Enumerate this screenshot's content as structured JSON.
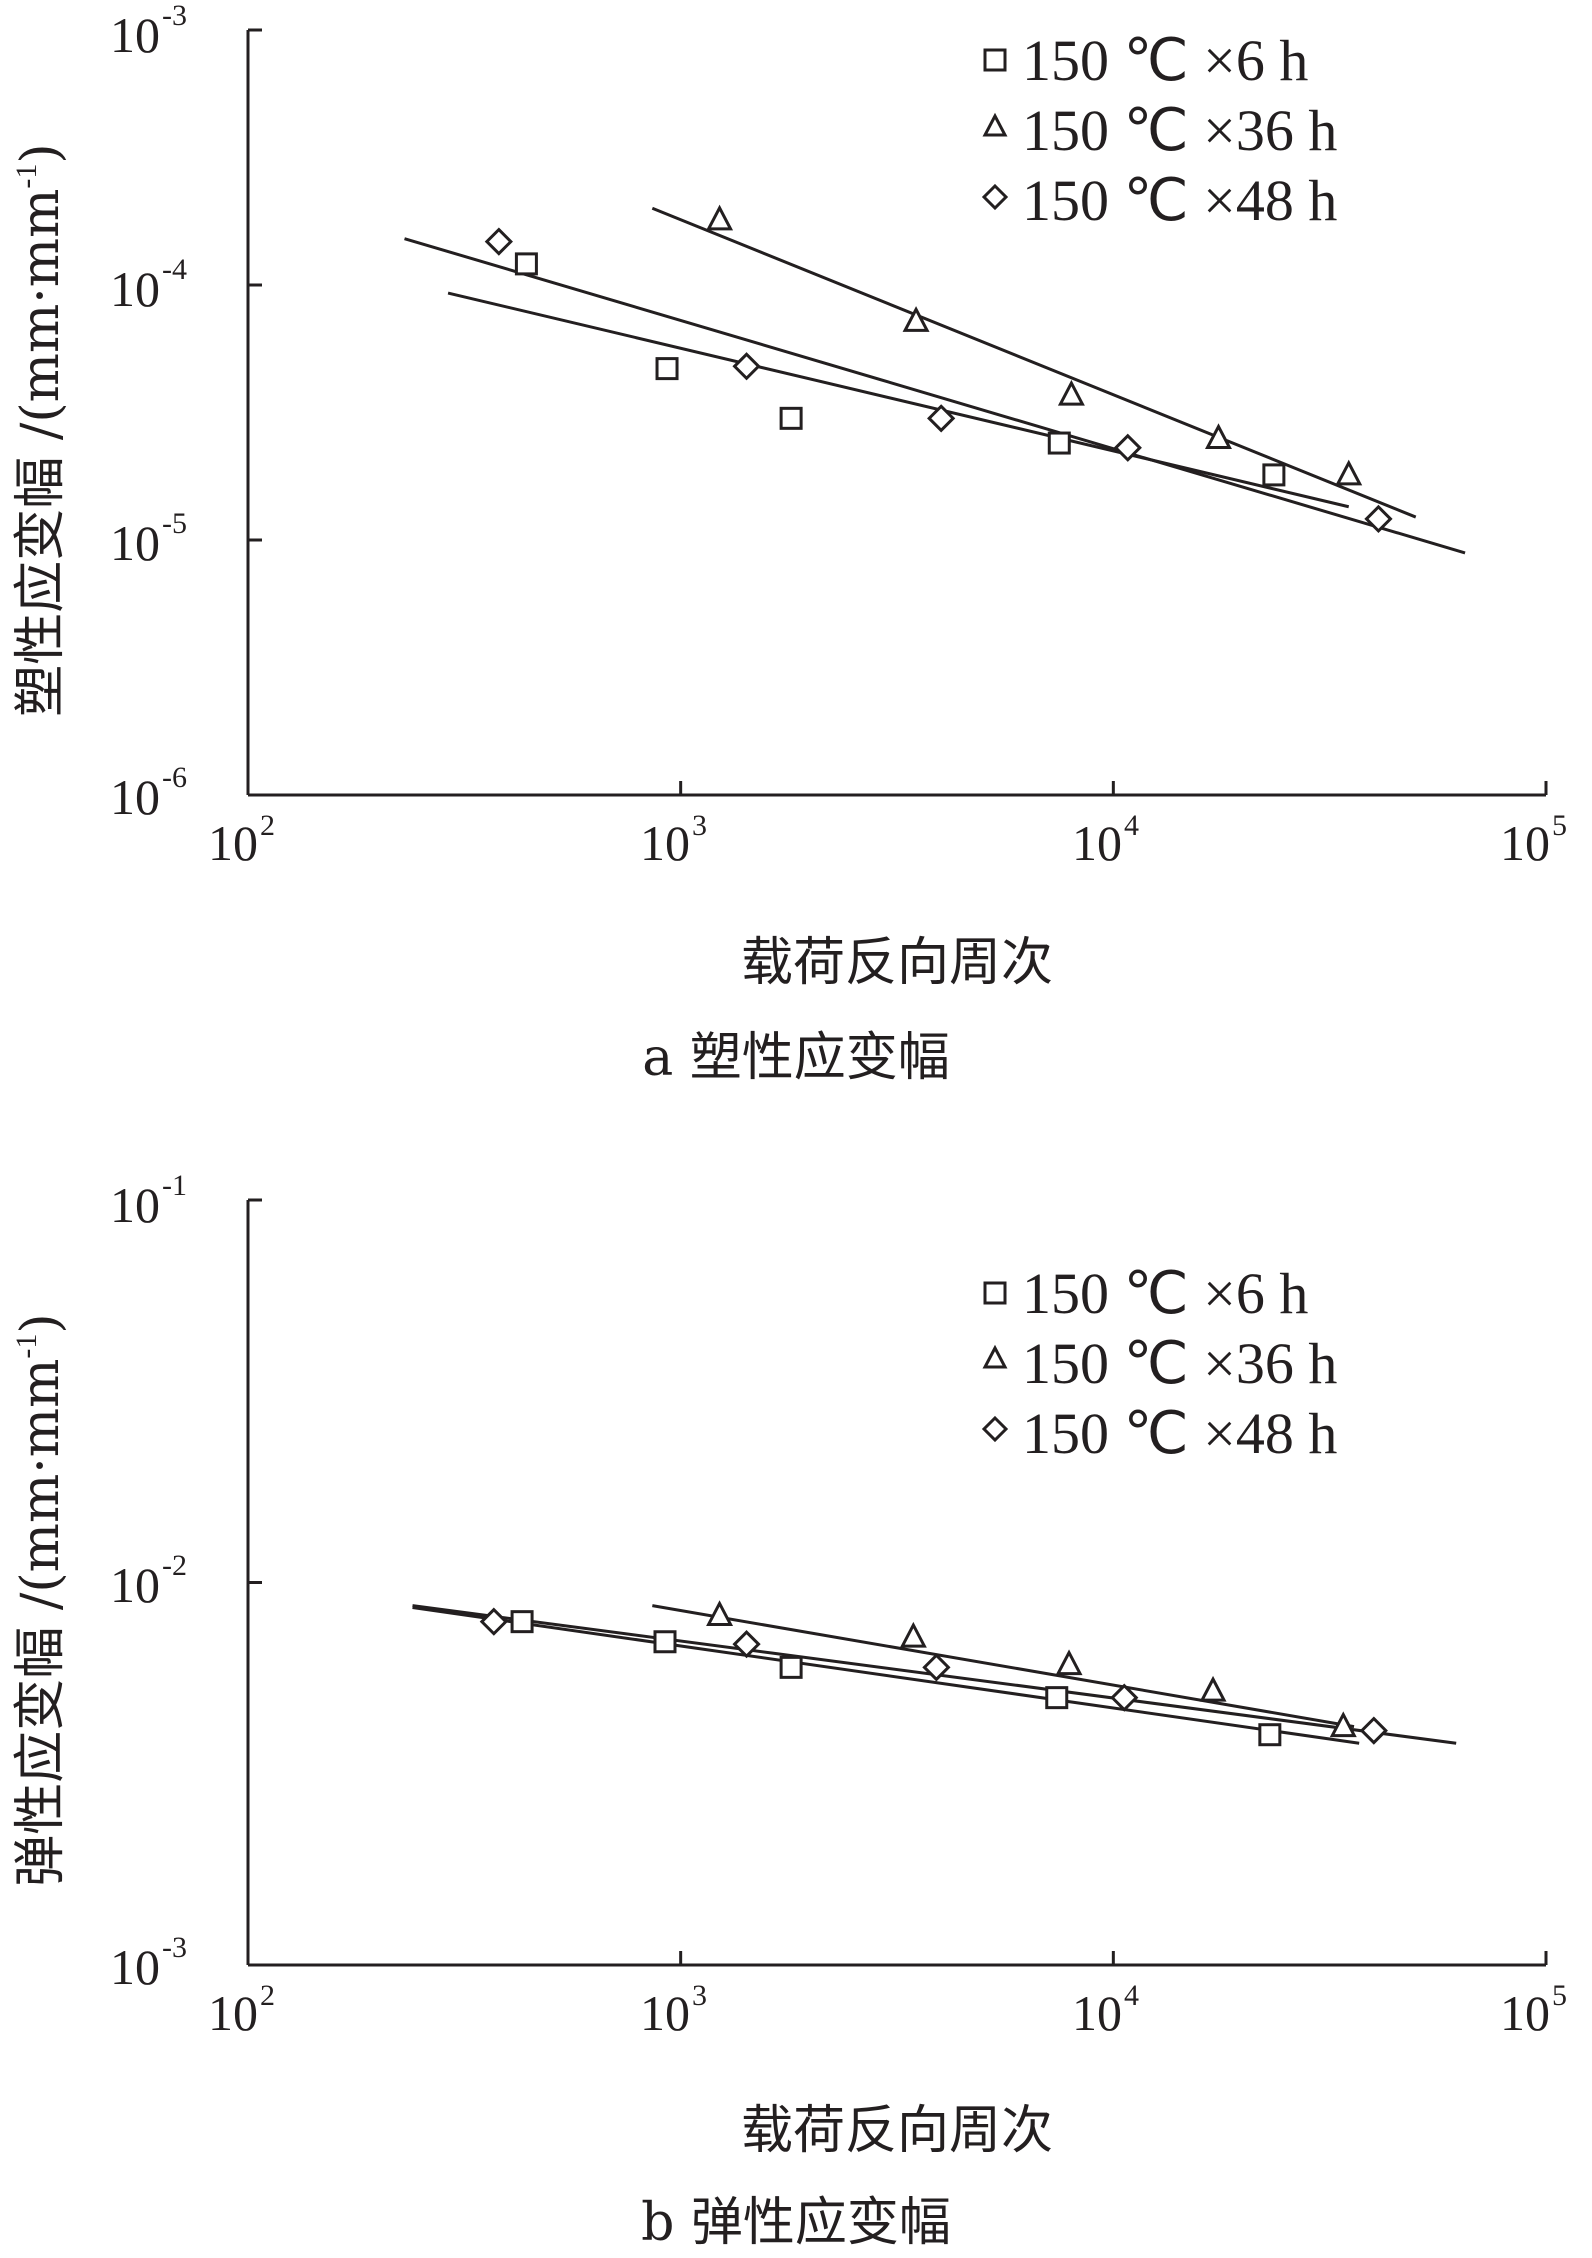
{
  "colors": {
    "ink": "#231f20",
    "background": "#ffffff"
  },
  "chart_data": [
    {
      "id": "a",
      "type": "scatter",
      "caption": "a  塑性应变幅",
      "xlabel": "载荷反向周次",
      "ylabel": "塑性应变幅 /(mm·mm",
      "ylabel_exp": "-1",
      "ylabel_close": ")",
      "x_scale": "log",
      "y_scale": "log",
      "xlim": [
        100,
        100000
      ],
      "ylim": [
        1e-06,
        0.001
      ],
      "x_ticks": [
        {
          "value": 100,
          "base": "10",
          "exp": "2"
        },
        {
          "value": 1000,
          "base": "10",
          "exp": "3"
        },
        {
          "value": 10000,
          "base": "10",
          "exp": "4"
        },
        {
          "value": 100000,
          "base": "10",
          "exp": "5"
        }
      ],
      "y_ticks": [
        {
          "value": 0.001,
          "base": "10",
          "exp": "-3"
        },
        {
          "value": 0.0001,
          "base": "10",
          "exp": "-4"
        },
        {
          "value": 1e-05,
          "base": "10",
          "exp": "-5"
        },
        {
          "value": 1e-06,
          "base": "10",
          "exp": "-6"
        }
      ],
      "grid": false,
      "legend_position": "top-right",
      "series": [
        {
          "name": "150 ℃ ×6 h",
          "marker": "square",
          "points": [
            [
              440,
              0.000121
            ],
            [
              930,
              4.7e-05
            ],
            [
              1800,
              3e-05
            ],
            [
              7500,
              2.4e-05
            ],
            [
              23500,
              1.8e-05
            ]
          ],
          "fit": [
            [
              290,
              9.3e-05
            ],
            [
              35000,
              1.35e-05
            ]
          ]
        },
        {
          "name": "150 ℃ ×36 h",
          "marker": "triangle",
          "points": [
            [
              1230,
              0.00018
            ],
            [
              3500,
              7.2e-05
            ],
            [
              8000,
              3.7e-05
            ],
            [
              17500,
              2.5e-05
            ],
            [
              35000,
              1.8e-05
            ]
          ],
          "fit": [
            [
              860,
              0.0002
            ],
            [
              50000,
              1.23e-05
            ]
          ]
        },
        {
          "name": "150 ℃ ×48 h",
          "marker": "diamond",
          "points": [
            [
              380,
              0.000148
            ],
            [
              1420,
              4.8e-05
            ],
            [
              4000,
              3e-05
            ],
            [
              10800,
              2.3e-05
            ],
            [
              41000,
              1.21e-05
            ]
          ],
          "fit": [
            [
              230,
              0.000152
            ],
            [
              65000,
              8.9e-06
            ]
          ]
        }
      ]
    },
    {
      "id": "b",
      "type": "scatter",
      "caption": "b  弹性应变幅",
      "xlabel": "载荷反向周次",
      "ylabel": "弹性应变幅 /(mm·mm",
      "ylabel_exp": "-1",
      "ylabel_close": ")",
      "x_scale": "log",
      "y_scale": "log",
      "xlim": [
        100,
        100000
      ],
      "ylim": [
        0.001,
        0.1
      ],
      "x_ticks": [
        {
          "value": 100,
          "base": "10",
          "exp": "2"
        },
        {
          "value": 1000,
          "base": "10",
          "exp": "3"
        },
        {
          "value": 10000,
          "base": "10",
          "exp": "4"
        },
        {
          "value": 100000,
          "base": "10",
          "exp": "5"
        }
      ],
      "y_ticks": [
        {
          "value": 0.1,
          "base": "10",
          "exp": "-1"
        },
        {
          "value": 0.01,
          "base": "10",
          "exp": "-2"
        },
        {
          "value": 0.001,
          "base": "10",
          "exp": "-3"
        }
      ],
      "grid": false,
      "legend_position": "top-right",
      "series": [
        {
          "name": "150 ℃ ×6 h",
          "marker": "square",
          "points": [
            [
              430,
              0.0079
            ],
            [
              920,
              0.007
            ],
            [
              1800,
              0.006
            ],
            [
              7400,
              0.005
            ],
            [
              23000,
              0.004
            ]
          ],
          "fit": [
            [
              240,
              0.0086
            ],
            [
              37000,
              0.0038
            ]
          ]
        },
        {
          "name": "150 ℃ ×36 h",
          "marker": "triangle",
          "points": [
            [
              1230,
              0.0082
            ],
            [
              3450,
              0.0072
            ],
            [
              7900,
              0.0061
            ],
            [
              17000,
              0.0052
            ],
            [
              34000,
              0.0042
            ]
          ],
          "fit": [
            [
              860,
              0.0087
            ],
            [
              36000,
              0.0042
            ]
          ]
        },
        {
          "name": "150 ℃ ×48 h",
          "marker": "diamond",
          "points": [
            [
              370,
              0.0079
            ],
            [
              1420,
              0.0069
            ],
            [
              3900,
              0.006
            ],
            [
              10600,
              0.005
            ],
            [
              40000,
              0.0041
            ]
          ],
          "fit": [
            [
              240,
              0.0087
            ],
            [
              62000,
              0.0038
            ]
          ]
        }
      ]
    }
  ]
}
